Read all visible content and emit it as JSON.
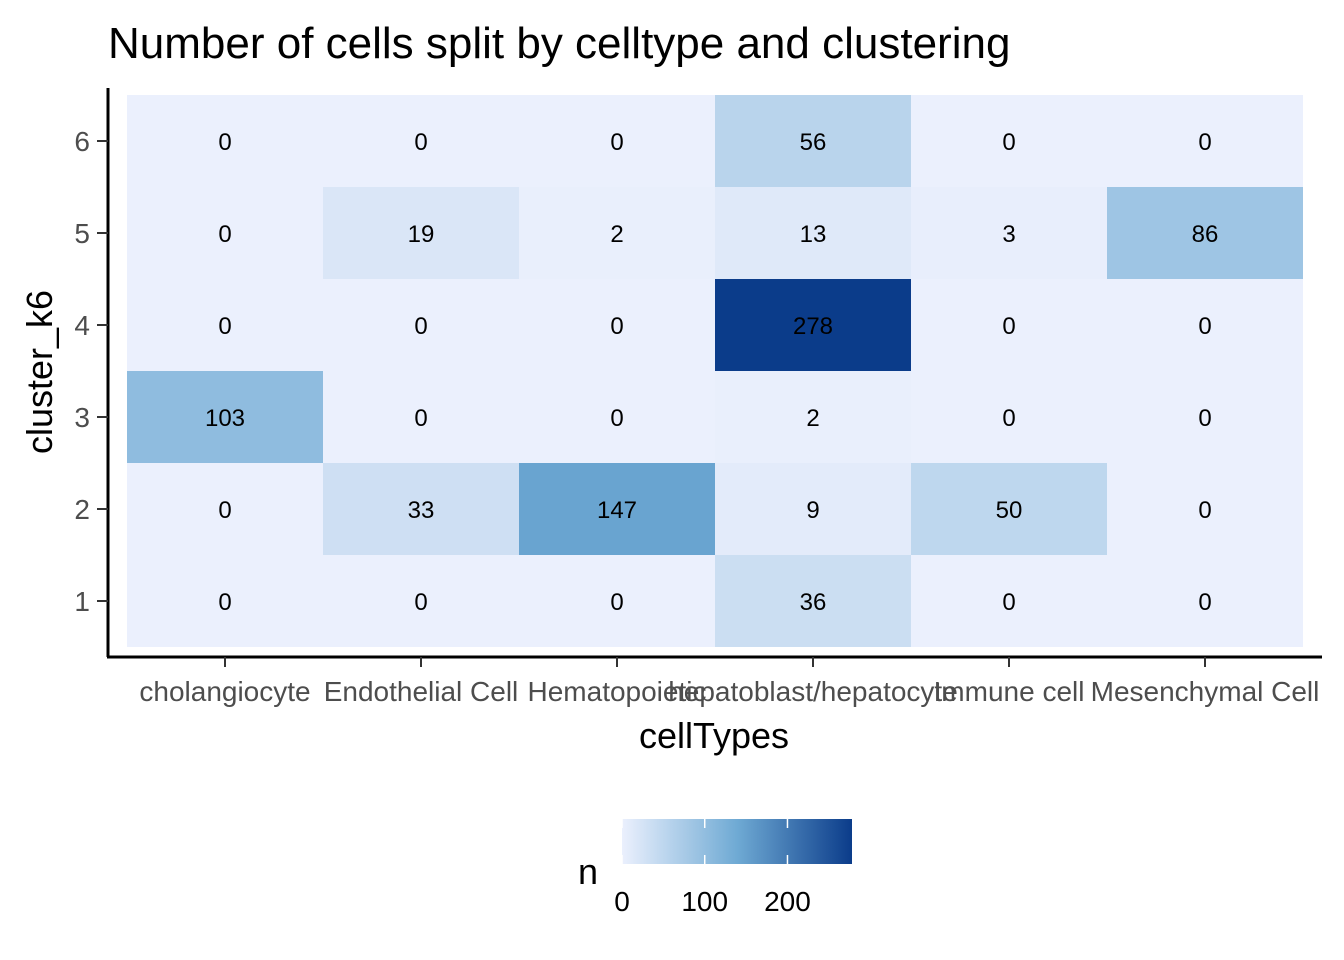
{
  "chart_data": {
    "type": "heatmap",
    "title": "Number of cells split by celltype and clustering",
    "xlabel": "cellTypes",
    "ylabel": "cluster_k6",
    "x_categories": [
      "cholangiocyte",
      "Endothelial Cell",
      "Hematopoietic",
      "hepatoblast/hepatocyte",
      "Immune cell",
      "Mesenchymal Cell"
    ],
    "y_categories": [
      "1",
      "2",
      "3",
      "4",
      "5",
      "6"
    ],
    "values": [
      [
        0,
        0,
        0,
        36,
        0,
        0
      ],
      [
        0,
        33,
        147,
        9,
        50,
        0
      ],
      [
        103,
        0,
        0,
        2,
        0,
        0
      ],
      [
        0,
        0,
        0,
        278,
        0,
        0
      ],
      [
        0,
        19,
        2,
        13,
        3,
        86
      ],
      [
        0,
        0,
        0,
        56,
        0,
        0
      ]
    ],
    "legend": {
      "title": "n",
      "position": "bottom",
      "breaks": [
        0,
        100,
        200
      ],
      "range": [
        0,
        278
      ]
    },
    "color_scale": {
      "low": "#EBF0FD",
      "mid": "#6FAAD4",
      "high": "#0B3C8A"
    },
    "grid": false
  }
}
